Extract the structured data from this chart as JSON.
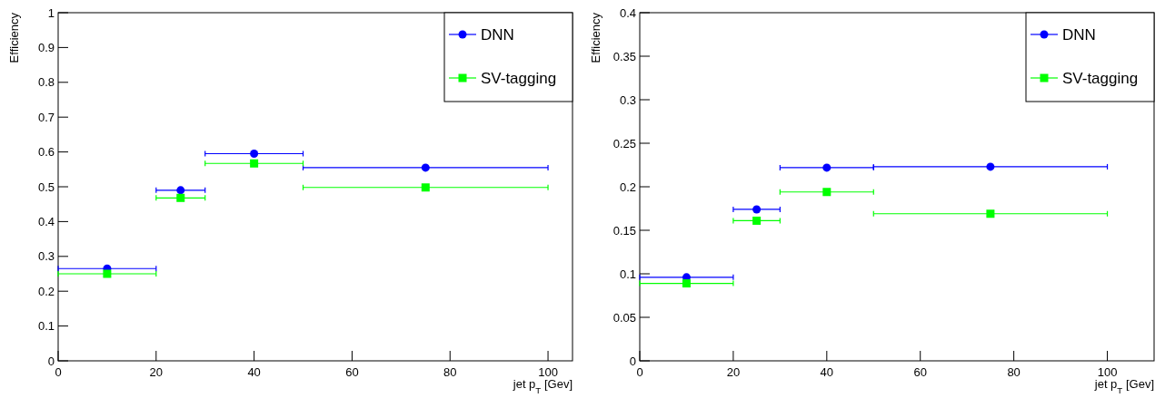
{
  "chart_data": [
    {
      "type": "scatter",
      "xlabel": "jet p$_{T}$ [Gev]",
      "ylabel": "Efficiency",
      "xlim": [
        0,
        105
      ],
      "ylim": [
        0,
        1
      ],
      "xticks": [
        0,
        20,
        40,
        60,
        80,
        100
      ],
      "yticks": [
        0,
        0.1,
        0.2,
        0.3,
        0.4,
        0.5,
        0.6,
        0.7,
        0.8,
        0.9,
        1
      ],
      "legend": "top right",
      "grid": false,
      "x": [
        10,
        25,
        40,
        75
      ],
      "series": [
        {
          "name": "DNN",
          "color": "#0000ff",
          "marker": "circle",
          "values": [
            0.265,
            0.49,
            0.595,
            0.555
          ],
          "xerrors": [
            10,
            5,
            10,
            25
          ]
        },
        {
          "name": "SV-tagging",
          "color": "#00ff00",
          "marker": "square",
          "values": [
            0.25,
            0.468,
            0.567,
            0.498
          ],
          "xerrors": [
            10,
            5,
            10,
            25
          ]
        }
      ]
    },
    {
      "type": "scatter",
      "xlabel": "jet p$_{T}$ [Gev]",
      "ylabel": "Efficiency",
      "xlim": [
        0,
        110
      ],
      "ylim": [
        0,
        0.4
      ],
      "xticks": [
        0,
        20,
        40,
        60,
        80,
        100
      ],
      "yticks": [
        0,
        0.05,
        0.1,
        0.15,
        0.2,
        0.25,
        0.3,
        0.35,
        0.4
      ],
      "legend": "top right",
      "grid": false,
      "x": [
        10,
        25,
        40,
        75
      ],
      "series": [
        {
          "name": "DNN",
          "color": "#0000ff",
          "marker": "circle",
          "values": [
            0.096,
            0.174,
            0.222,
            0.223
          ],
          "xerrors": [
            10,
            5,
            10,
            25
          ]
        },
        {
          "name": "SV-tagging",
          "color": "#00ff00",
          "marker": "square",
          "values": [
            0.089,
            0.161,
            0.194,
            0.169
          ],
          "xerrors": [
            10,
            5,
            10,
            25
          ]
        }
      ]
    }
  ]
}
